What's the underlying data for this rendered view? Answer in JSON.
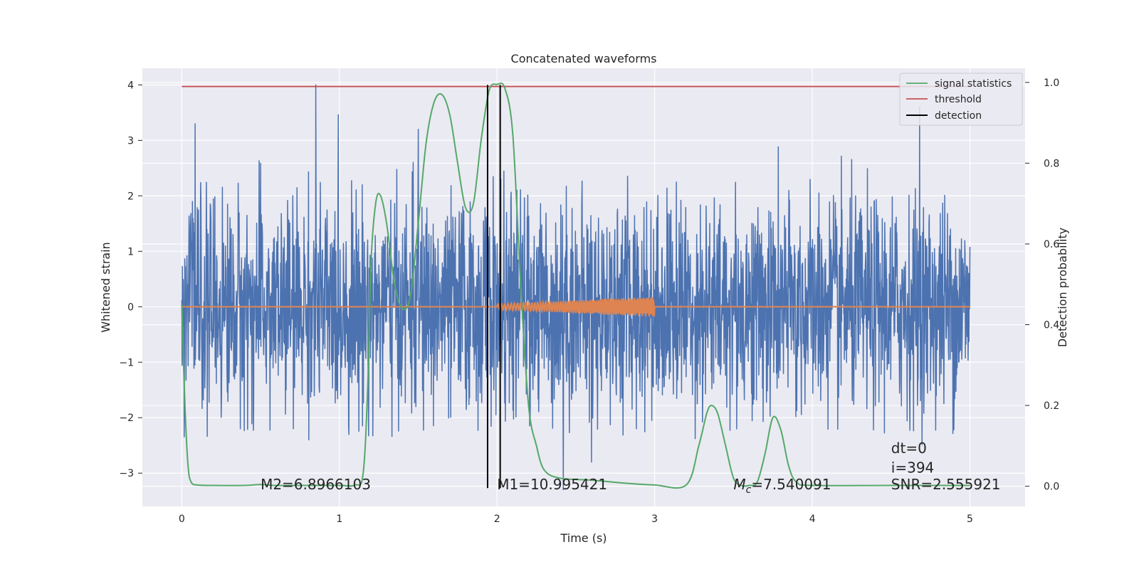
{
  "chart_data": {
    "type": "line",
    "title": "Concatenated waveforms",
    "xlabel": "Time (s)",
    "ylabel": "Whitened strain",
    "y2label": "Detection probability",
    "xlim": [
      -0.25,
      5.35
    ],
    "ylim": [
      -3.6,
      4.3
    ],
    "y2lim": [
      -0.05,
      1.035
    ],
    "xticks": [
      0,
      1,
      2,
      3,
      4,
      5
    ],
    "yticks": [
      -3,
      -2,
      -1,
      0,
      1,
      2,
      3,
      4
    ],
    "y2ticks": [
      0.0,
      0.2,
      0.4,
      0.6,
      0.8,
      1.0
    ],
    "grid": true,
    "legend_position": "top-right",
    "series": [
      {
        "name": "",
        "role": "whitened-strain-noise",
        "axis": "left",
        "color": "#4C72B0",
        "x_range": [
          0,
          5
        ],
        "approx_range": [
          -2.8,
          4.0
        ],
        "spikes": [
          [
            0.085,
            3.3
          ],
          [
            0.85,
            4.0
          ],
          [
            1.5,
            3.2
          ],
          [
            2.42,
            -3.3
          ],
          [
            2.6,
            -2.8
          ],
          [
            4.68,
            3.6
          ]
        ]
      },
      {
        "name": "",
        "role": "injected-template",
        "axis": "left",
        "color": "#DD8452",
        "x_range": [
          0,
          5
        ],
        "chirp_range": [
          2.0,
          3.0
        ],
        "chirp_amplitude": [
          0.05,
          0.18
        ]
      },
      {
        "name": "signal statistics",
        "axis": "right",
        "color": "#55A868",
        "x": [
          0,
          0.02,
          0.04,
          0.06,
          0.1,
          0.2,
          0.4,
          0.5,
          0.6,
          0.8,
          1.0,
          1.1,
          1.15,
          1.18,
          1.2,
          1.23,
          1.26,
          1.3,
          1.35,
          1.4,
          1.45,
          1.5,
          1.55,
          1.6,
          1.65,
          1.7,
          1.75,
          1.8,
          1.85,
          1.9,
          1.95,
          2.0,
          2.05,
          2.1,
          2.15,
          2.2,
          2.25,
          2.3,
          2.4,
          2.6,
          2.8,
          3.0,
          3.2,
          3.28,
          3.33,
          3.36,
          3.4,
          3.45,
          3.5,
          3.55,
          3.6,
          3.65,
          3.7,
          3.75,
          3.8,
          3.85,
          3.9,
          4.0,
          4.5,
          5.0
        ],
        "values": [
          0.45,
          0.2,
          0.05,
          0.01,
          0.003,
          0.002,
          0.002,
          0.004,
          0.002,
          0.002,
          0.002,
          0.003,
          0.03,
          0.25,
          0.55,
          0.7,
          0.72,
          0.65,
          0.5,
          0.44,
          0.47,
          0.65,
          0.85,
          0.95,
          0.97,
          0.92,
          0.8,
          0.69,
          0.7,
          0.86,
          0.98,
          0.995,
          0.985,
          0.87,
          0.5,
          0.2,
          0.1,
          0.04,
          0.02,
          0.015,
          0.008,
          0.003,
          0.003,
          0.1,
          0.18,
          0.2,
          0.18,
          0.1,
          0.02,
          0.002,
          0.002,
          0.01,
          0.08,
          0.17,
          0.14,
          0.05,
          0.01,
          0.002,
          0.002,
          0.002
        ]
      },
      {
        "name": "threshold",
        "axis": "right",
        "color": "#C44E52",
        "x": [
          0,
          5
        ],
        "values": [
          0.99,
          0.99
        ]
      },
      {
        "name": "detection",
        "axis": "left",
        "color": "#000000",
        "type": "vline",
        "x": [
          1.94,
          2.02
        ],
        "y_range": [
          -3.27,
          4.0
        ]
      }
    ],
    "annotations": [
      {
        "text": "M2=6.8966103",
        "x": 0.5,
        "y": -3.2
      },
      {
        "text": "M1=10.995421",
        "x": 2.0,
        "y": -3.2
      },
      {
        "text": "=7.540091",
        "prefix": "M",
        "sub": "c",
        "x": 3.5,
        "y": -3.2
      },
      {
        "text": "dt=0",
        "x": 4.5,
        "y": -2.55
      },
      {
        "text": "i=394",
        "x": 4.5,
        "y": -2.9
      },
      {
        "text": "SNR=2.555921",
        "x": 4.5,
        "y": -3.2
      }
    ]
  }
}
